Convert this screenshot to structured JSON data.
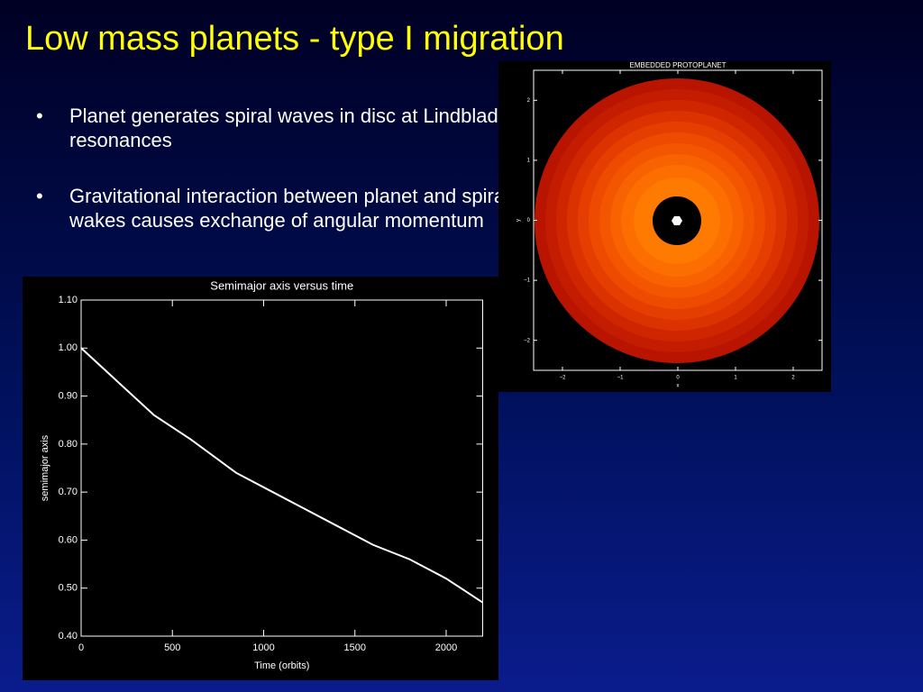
{
  "title": "Low mass planets - type I migration",
  "bullets": [
    "Planet generates spiral waves in disc at Lindblad resonances",
    "Gravitational interaction between planet and spiral wakes causes exchange of angular momentum"
  ],
  "chart_data": [
    {
      "type": "line",
      "title": "Semimajor axis versus time",
      "xlabel": "Time (orbits)",
      "ylabel": "semimajor axis",
      "x": [
        0,
        200,
        400,
        600,
        850,
        1000,
        1200,
        1400,
        1600,
        1800,
        2000,
        2200
      ],
      "series": [
        {
          "name": "semimajor axis",
          "color": "#ffffff",
          "values": [
            1.0,
            0.93,
            0.86,
            0.81,
            0.74,
            0.71,
            0.67,
            0.63,
            0.59,
            0.56,
            0.52,
            0.47
          ]
        }
      ],
      "xlim": [
        0,
        2200
      ],
      "xticks": [
        0,
        500,
        1000,
        1500,
        2000
      ],
      "ylim": [
        0.4,
        1.1
      ],
      "yticks": [
        {
          "value": 0.4,
          "label": "0.40"
        },
        {
          "value": 0.5,
          "label": "0.50"
        },
        {
          "value": 0.6,
          "label": "0.60"
        },
        {
          "value": 0.7,
          "label": "0.70"
        },
        {
          "value": 0.8,
          "label": "0.80"
        },
        {
          "value": 0.9,
          "label": "0.90"
        },
        {
          "value": 1.0,
          "label": "1.00"
        },
        {
          "value": 1.1,
          "label": "1.10"
        }
      ]
    },
    {
      "type": "image",
      "title": "EMBEDDED PROTOPLANET",
      "xlabel": "x",
      "ylabel": "y",
      "xlim": [
        -2.5,
        2.5
      ],
      "ylim": [
        -2.5,
        2.5
      ],
      "xticks": [
        {
          "value": -2,
          "label": "−2"
        },
        {
          "value": -1,
          "label": "−1"
        },
        0,
        1,
        2
      ],
      "yticks": [
        {
          "value": -2,
          "label": "−2"
        },
        {
          "value": -1,
          "label": "−1"
        },
        0,
        1,
        2
      ]
    }
  ]
}
